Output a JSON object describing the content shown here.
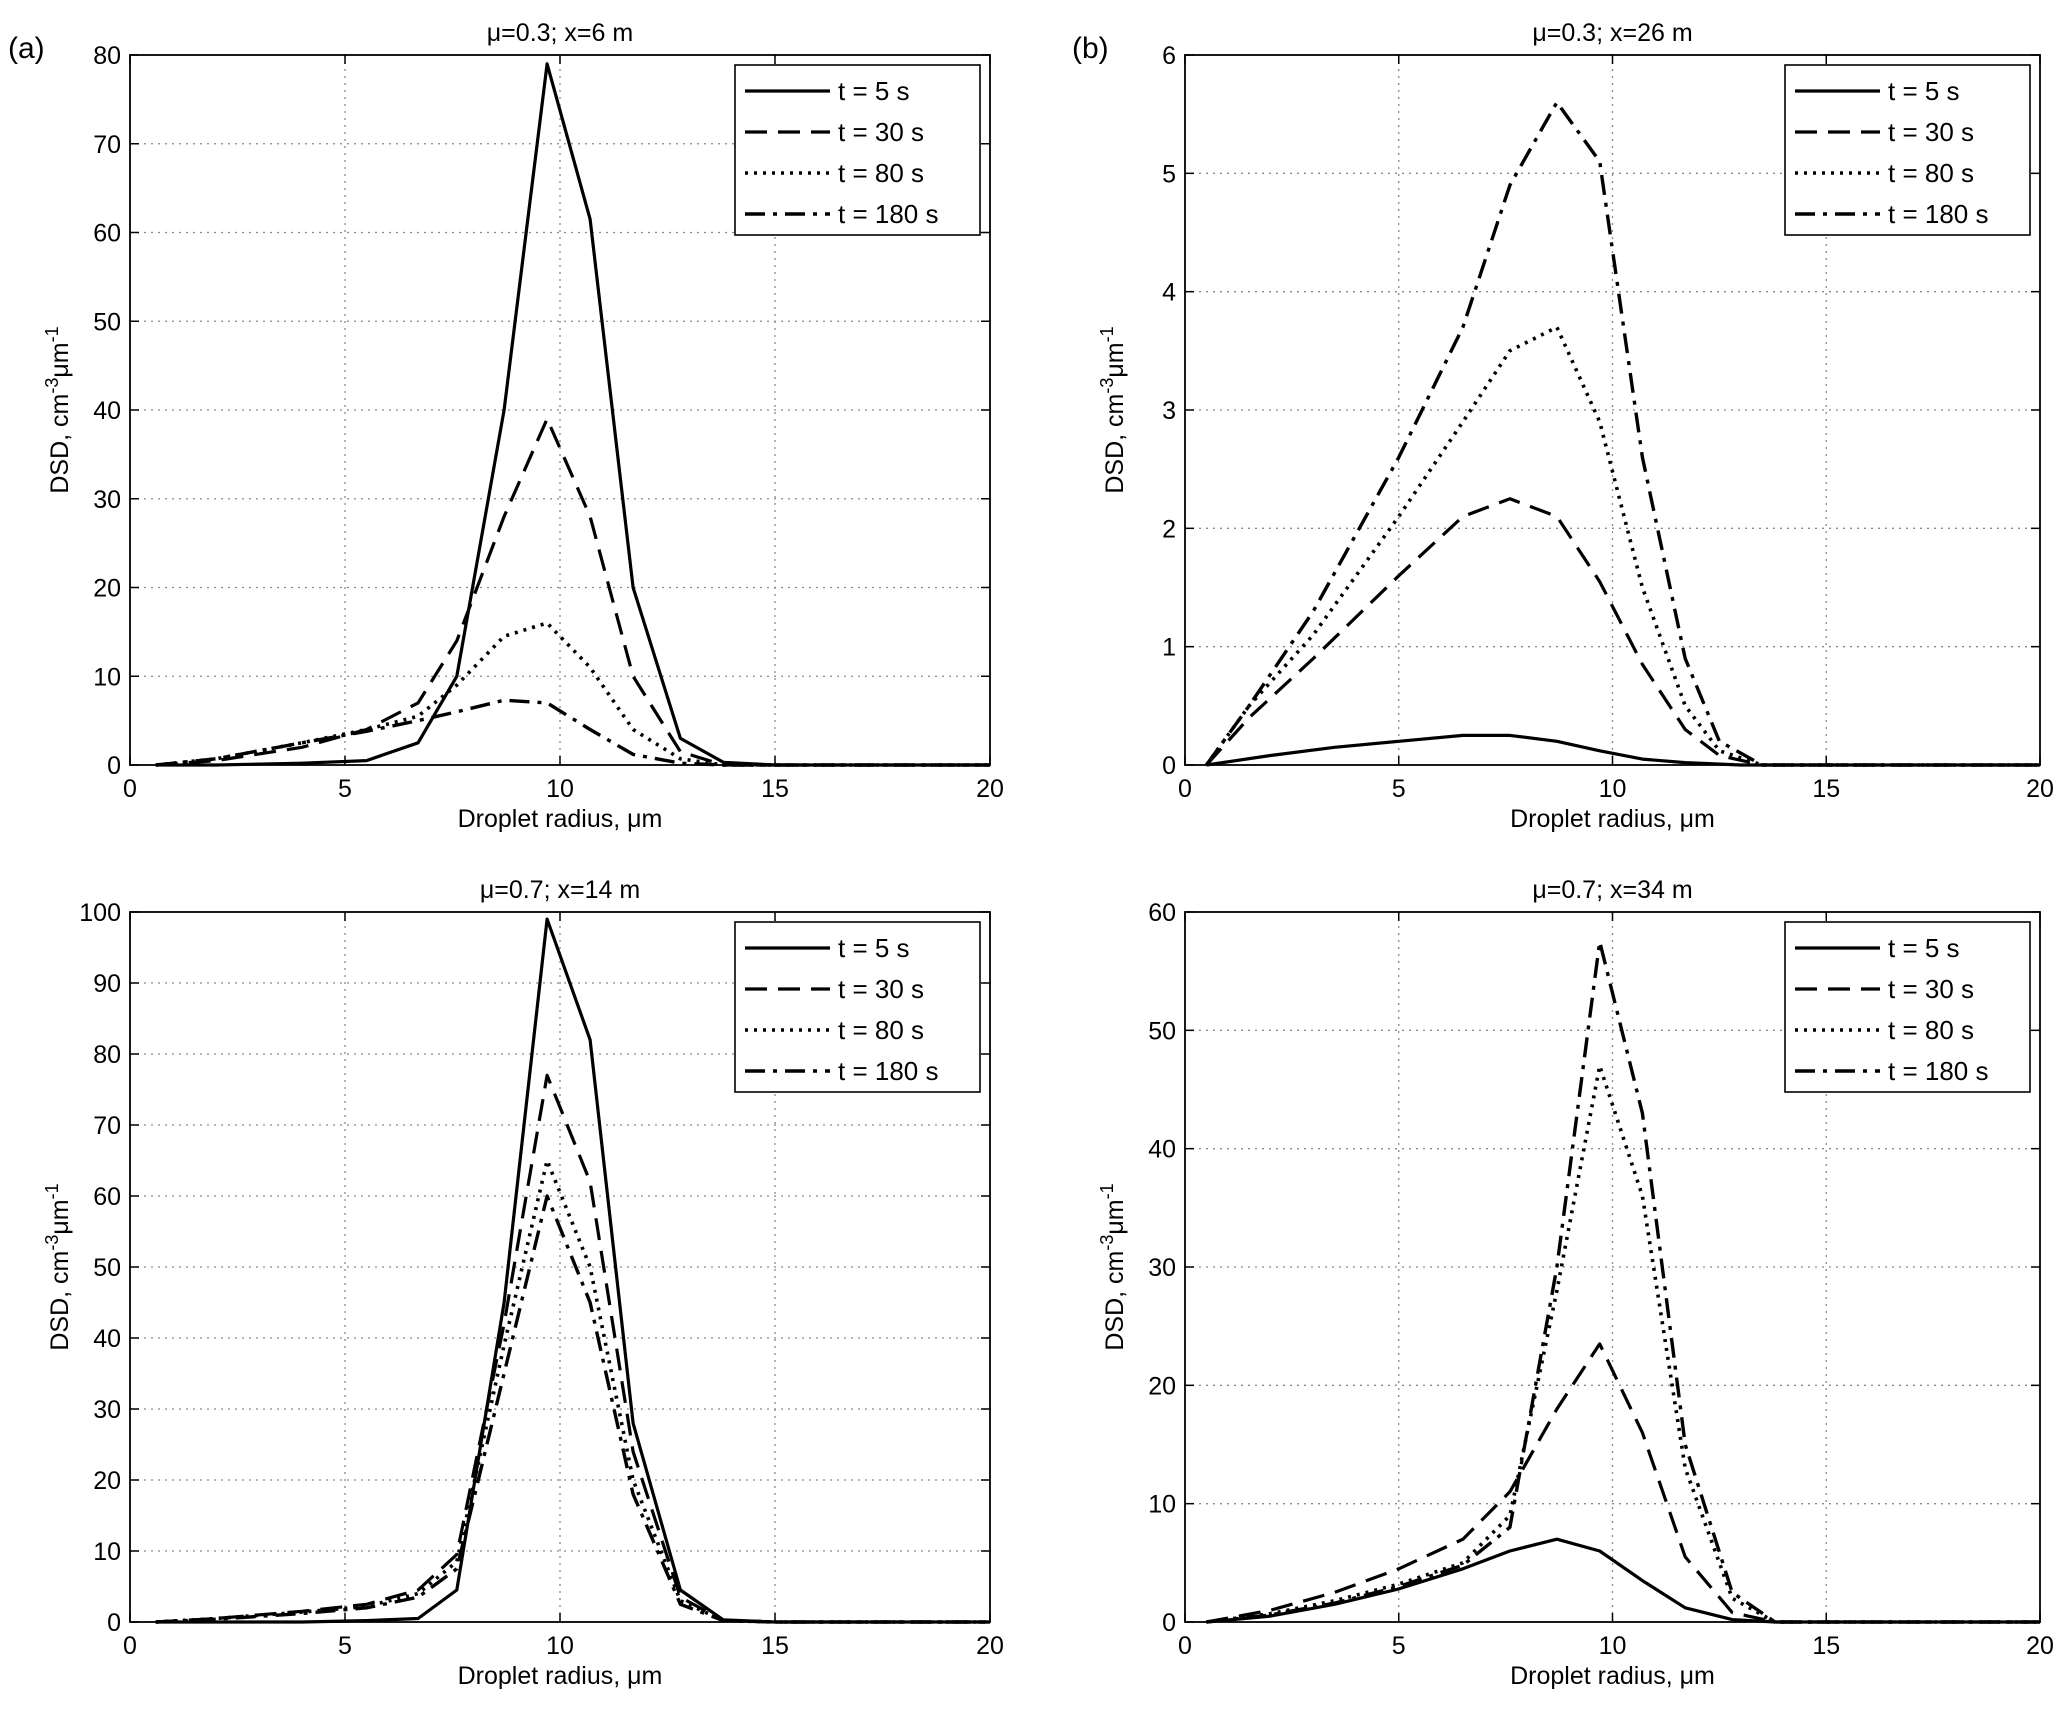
{
  "panel_labels": [
    "(a)",
    "(b)"
  ],
  "chart_data": [
    {
      "type": "line",
      "title": "μ=0.3;   x=6 m",
      "xlabel": "Droplet radius, μm",
      "ylabel": "DSD, cm-3μm-1",
      "xlim": [
        0,
        20
      ],
      "ylim": [
        0,
        80
      ],
      "xticks": [
        0,
        5,
        10,
        15,
        20
      ],
      "yticks": [
        0,
        10,
        20,
        30,
        40,
        50,
        60,
        70,
        80
      ],
      "grid": true,
      "legend_position": "top-right",
      "series": [
        {
          "name": "t = 5 s",
          "style": "solid",
          "x": [
            0.6,
            2,
            4,
            5.5,
            6.7,
            7.6,
            8.7,
            9.7,
            10.7,
            11.7,
            12.8,
            13.8,
            15,
            20
          ],
          "y": [
            0,
            0,
            0.2,
            0.5,
            2.5,
            10,
            40,
            79,
            61.5,
            20,
            3,
            0.3,
            0,
            0
          ]
        },
        {
          "name": "t = 30 s",
          "style": "dashed",
          "x": [
            0.6,
            2,
            4,
            5.5,
            6.7,
            7.6,
            8.7,
            9.7,
            10.7,
            11.7,
            12.8,
            13.8,
            15,
            20
          ],
          "y": [
            0,
            0.5,
            2,
            4,
            7,
            14,
            28,
            39,
            28,
            10,
            1.5,
            0,
            0,
            0
          ]
        },
        {
          "name": "t = 80 s",
          "style": "dotted",
          "x": [
            0.6,
            2,
            4,
            5.5,
            6.7,
            7.6,
            8.7,
            9.7,
            10.7,
            11.7,
            12.8,
            13.8,
            15,
            20
          ],
          "y": [
            0,
            0.7,
            2.5,
            4,
            5.5,
            9,
            14.5,
            16,
            11,
            4,
            0.7,
            0,
            0,
            0
          ]
        },
        {
          "name": "t = 180 s",
          "style": "dashdot",
          "x": [
            0.6,
            2,
            4,
            5.5,
            6.7,
            7.6,
            8.7,
            9.7,
            10.7,
            11.7,
            12.8,
            13.8,
            15,
            20
          ],
          "y": [
            0,
            0.7,
            2.5,
            3.8,
            5,
            6,
            7.3,
            7,
            4,
            1.2,
            0.2,
            0,
            0,
            0
          ]
        }
      ]
    },
    {
      "type": "line",
      "title": "μ=0.3;   x=26 m",
      "xlabel": "Droplet radius, μm",
      "ylabel": "DSD, cm-3μm-1",
      "xlim": [
        0,
        20
      ],
      "ylim": [
        0,
        6
      ],
      "xticks": [
        0,
        5,
        10,
        15,
        20
      ],
      "yticks": [
        0,
        1,
        2,
        3,
        4,
        5,
        6
      ],
      "grid": true,
      "legend_position": "top-right",
      "series": [
        {
          "name": "t = 5 s",
          "style": "solid",
          "x": [
            0.5,
            2,
            3.5,
            5,
            6.5,
            7.6,
            8.7,
            9.7,
            10.7,
            11.7,
            13,
            14,
            20
          ],
          "y": [
            0,
            0.08,
            0.15,
            0.2,
            0.25,
            0.25,
            0.2,
            0.12,
            0.05,
            0.02,
            0,
            0,
            0
          ]
        },
        {
          "name": "t = 30 s",
          "style": "dashed",
          "x": [
            0.5,
            1.5,
            3,
            5,
            6.5,
            7.6,
            8.7,
            9.7,
            10.7,
            11.7,
            12.5,
            13.5,
            20
          ],
          "y": [
            0,
            0.4,
            0.9,
            1.6,
            2.1,
            2.25,
            2.1,
            1.55,
            0.85,
            0.3,
            0.08,
            0,
            0
          ]
        },
        {
          "name": "t = 80 s",
          "style": "dotted",
          "x": [
            0.5,
            1.5,
            3,
            5,
            6.5,
            7.6,
            8.7,
            9.7,
            10.7,
            11.7,
            12.5,
            13.5,
            20
          ],
          "y": [
            0,
            0.5,
            1.1,
            2.1,
            2.9,
            3.5,
            3.7,
            2.9,
            1.5,
            0.5,
            0.12,
            0,
            0
          ]
        },
        {
          "name": "t = 180 s",
          "style": "dashdot",
          "x": [
            0.5,
            1.5,
            3,
            5,
            6.5,
            7.6,
            8.7,
            9.7,
            10.7,
            11.7,
            12.5,
            13.5,
            20
          ],
          "y": [
            0,
            0.5,
            1.3,
            2.6,
            3.7,
            4.9,
            5.6,
            5.1,
            2.6,
            0.9,
            0.2,
            0,
            0
          ]
        }
      ]
    },
    {
      "type": "line",
      "title": "μ=0.7;   x=14 m",
      "xlabel": "Droplet radius, μm",
      "ylabel": "DSD, cm-3μm-1",
      "xlim": [
        0,
        20
      ],
      "ylim": [
        0,
        100
      ],
      "xticks": [
        0,
        5,
        10,
        15,
        20
      ],
      "yticks": [
        0,
        10,
        20,
        30,
        40,
        50,
        60,
        70,
        80,
        90,
        100
      ],
      "grid": true,
      "legend_position": "top-right",
      "series": [
        {
          "name": "t = 5 s",
          "style": "solid",
          "x": [
            0.6,
            2,
            4,
            5.5,
            6.7,
            7.6,
            8.7,
            9.7,
            10.7,
            11.7,
            12.8,
            13.8,
            15,
            20
          ],
          "y": [
            0,
            0,
            0,
            0.2,
            0.5,
            4.5,
            45,
            99,
            82,
            28,
            4.5,
            0.3,
            0,
            0
          ]
        },
        {
          "name": "t = 30 s",
          "style": "dashed",
          "x": [
            0.6,
            2,
            4,
            5.5,
            6.7,
            7.6,
            8.7,
            9.7,
            10.7,
            11.7,
            12.8,
            13.8,
            15,
            20
          ],
          "y": [
            0,
            0.5,
            1.5,
            2.5,
            4.5,
            9.5,
            42,
            77,
            62,
            24,
            3.5,
            0.2,
            0,
            0
          ]
        },
        {
          "name": "t = 80 s",
          "style": "dotted",
          "x": [
            0.6,
            2,
            4,
            5.5,
            6.7,
            7.6,
            8.7,
            9.7,
            10.7,
            11.7,
            12.8,
            13.8,
            15,
            20
          ],
          "y": [
            0,
            0.5,
            1.4,
            2.2,
            4,
            8.5,
            39,
            65,
            50,
            20,
            3,
            0.2,
            0,
            0
          ]
        },
        {
          "name": "t = 180 s",
          "style": "dashdot",
          "x": [
            0.6,
            2,
            4,
            5.5,
            6.7,
            7.6,
            8.7,
            9.7,
            10.7,
            11.7,
            12.8,
            13.8,
            15,
            20
          ],
          "y": [
            0,
            0.4,
            1.2,
            2,
            3.5,
            7.5,
            35,
            60,
            45,
            18,
            2.5,
            0.2,
            0,
            0
          ]
        }
      ]
    },
    {
      "type": "line",
      "title": "μ=0.7;   x=34 m",
      "xlabel": "Droplet radius, μm",
      "ylabel": "DSD, cm-3μm-1",
      "xlim": [
        0,
        20
      ],
      "ylim": [
        0,
        60
      ],
      "xticks": [
        0,
        5,
        10,
        15,
        20
      ],
      "yticks": [
        0,
        10,
        20,
        30,
        40,
        50,
        60
      ],
      "grid": true,
      "legend_position": "top-right",
      "series": [
        {
          "name": "t = 5 s",
          "style": "solid",
          "x": [
            0.5,
            2,
            3.5,
            5,
            6.5,
            7.6,
            8.7,
            9.7,
            10.7,
            11.7,
            12.8,
            13.8,
            20
          ],
          "y": [
            0,
            0.5,
            1.5,
            2.8,
            4.5,
            6,
            7,
            6,
            3.5,
            1.2,
            0.2,
            0,
            0
          ]
        },
        {
          "name": "t = 30 s",
          "style": "dashed",
          "x": [
            0.5,
            2,
            3.5,
            5,
            6.5,
            7.6,
            8.7,
            9.7,
            10.7,
            11.7,
            12.8,
            13.8,
            20
          ],
          "y": [
            0,
            1,
            2.5,
            4.5,
            7,
            11,
            18,
            23.5,
            16,
            5.5,
            0.8,
            0,
            0
          ]
        },
        {
          "name": "t = 80 s",
          "style": "dotted",
          "x": [
            0.5,
            2,
            3.5,
            5,
            6.5,
            7.6,
            8.7,
            9.7,
            10.7,
            11.7,
            12.8,
            13.8,
            20
          ],
          "y": [
            0,
            0.7,
            1.8,
            3.2,
            5,
            9,
            28,
            47,
            36,
            13,
            2,
            0,
            0
          ]
        },
        {
          "name": "t = 180 s",
          "style": "dashdot",
          "x": [
            0.5,
            2,
            3.5,
            5,
            6.5,
            7.6,
            8.7,
            9.7,
            10.7,
            11.7,
            12.8,
            13.8,
            20
          ],
          "y": [
            0,
            0.6,
            1.6,
            3,
            4.8,
            8,
            30,
            57.5,
            43,
            15,
            2.5,
            0,
            0
          ]
        }
      ]
    }
  ]
}
